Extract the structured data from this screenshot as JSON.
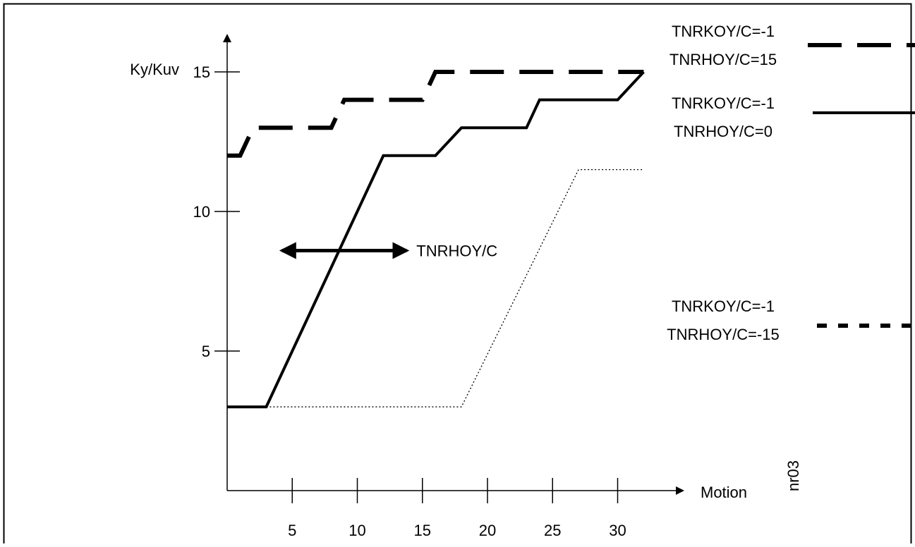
{
  "chart_data": {
    "type": "line",
    "title": "",
    "xlabel": "Motion",
    "ylabel": "Ky/Kuv",
    "xlim": [
      0,
      35
    ],
    "ylim": [
      0,
      17
    ],
    "x_ticks": [
      5,
      10,
      15,
      20,
      25,
      30
    ],
    "y_ticks": [
      5,
      10,
      15
    ],
    "grid": false,
    "legend_position": "right",
    "series": [
      {
        "name": "TNRKOY/C=-1 TNRHOY/C=15",
        "legend_lines": [
          "TNRKOY/C=-1",
          "TNRHOY/C=15"
        ],
        "style": "dashed",
        "x": [
          0,
          1,
          2,
          8,
          9,
          15,
          16,
          32
        ],
        "y": [
          12,
          12,
          13,
          13,
          14,
          14,
          15,
          15
        ]
      },
      {
        "name": "TNRKOY/C=-1 TNRHOY/C=0",
        "legend_lines": [
          "TNRKOY/C=-1",
          "TNRHOY/C=0"
        ],
        "style": "solid",
        "x": [
          0,
          3,
          12,
          16,
          18,
          23,
          24,
          30,
          32
        ],
        "y": [
          3,
          3,
          12,
          12,
          13,
          13,
          14,
          14,
          15
        ]
      },
      {
        "name": "TNRKOY/C=-1 TNRHOY/C=-15",
        "legend_lines": [
          "TNRKOY/C=-1",
          "TNRHOY/C=-15"
        ],
        "style": "dotted",
        "x": [
          3,
          18,
          27,
          32
        ],
        "y": [
          3,
          3,
          11.5,
          11.5
        ]
      }
    ],
    "annotations": [
      {
        "text": "TNRHOY/C",
        "type": "double-arrow",
        "x_range": [
          4,
          14
        ],
        "y": 8.6
      }
    ],
    "corner_label": "nr03",
    "colors": {
      "line": "#000000",
      "background": "#ffffff"
    }
  }
}
